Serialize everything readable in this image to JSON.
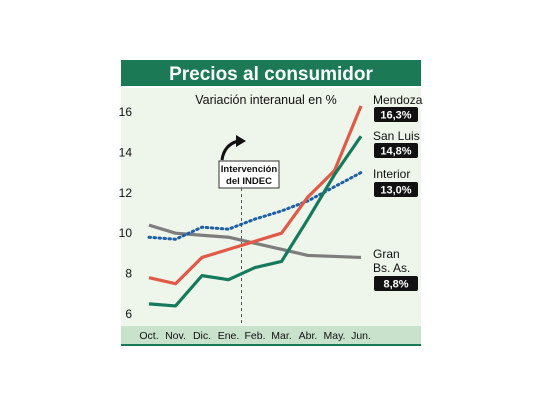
{
  "chart_data": {
    "type": "line",
    "title": "Precios al consumidor",
    "subtitle": "Variación interanual en %",
    "categories": [
      "Oct.",
      "Nov.",
      "Dic.",
      "Ene.",
      "Feb.",
      "Mar.",
      "Abr.",
      "May.",
      "Jun."
    ],
    "ylim": [
      6,
      16
    ],
    "yticks": [
      "6",
      "8",
      "10",
      "12",
      "14",
      "16"
    ],
    "grid": false,
    "annotation": {
      "lines": [
        "Intervención",
        "del INDEC"
      ],
      "at_category": "Ene.",
      "style": "dashed vertical line"
    },
    "series": [
      {
        "name": "Mendoza",
        "name_lines": [
          "Mendoza"
        ],
        "badge": "16,3%",
        "color": "#e05a47",
        "dash": "solid",
        "values": [
          7.8,
          7.5,
          8.8,
          9.2,
          9.6,
          10.0,
          11.8,
          13.1,
          16.3
        ]
      },
      {
        "name": "San Luis",
        "name_lines": [
          "San Luis"
        ],
        "badge": "14,8%",
        "color": "#157a5c",
        "dash": "solid",
        "values": [
          6.5,
          6.4,
          7.9,
          7.7,
          8.3,
          8.6,
          10.7,
          12.9,
          14.8
        ]
      },
      {
        "name": "Interior",
        "name_lines": [
          "Interior"
        ],
        "badge": "13,0%",
        "color": "#1f5fa8",
        "dash": "dotted",
        "values": [
          9.8,
          9.7,
          10.3,
          10.2,
          10.7,
          11.1,
          11.6,
          12.3,
          13.0
        ]
      },
      {
        "name": "Gran Bs. As.",
        "name_lines": [
          "Gran",
          "Bs. As."
        ],
        "badge": "8,8%",
        "color": "#7d7d7d",
        "dash": "solid",
        "values": [
          10.4,
          10.0,
          9.9,
          9.8,
          9.5,
          9.2,
          8.9,
          8.85,
          8.8
        ]
      }
    ]
  },
  "colors": {
    "title_bar": "#1b7a55",
    "plot_background": "#eef5ea",
    "x_axis_band": "#c9e2cc",
    "badge": "#111111"
  }
}
